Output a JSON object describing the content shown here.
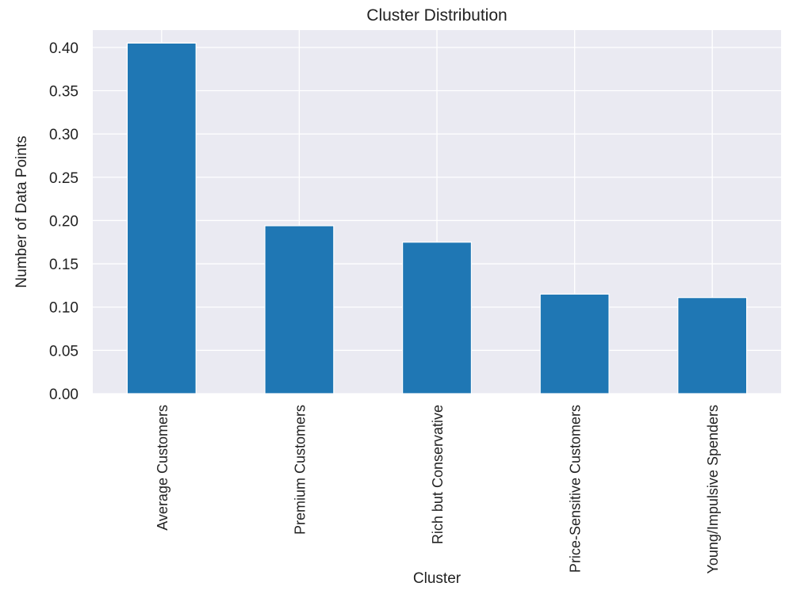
{
  "chart_data": {
    "type": "bar",
    "title": "Cluster Distribution",
    "xlabel": "Cluster",
    "ylabel": "Number of Data Points",
    "categories": [
      "Average Customers",
      "Premium Customers",
      "Rich but Conservative",
      "Price-Sensitive Customers",
      "Young/Impulsive Spenders"
    ],
    "values": [
      0.405,
      0.194,
      0.175,
      0.115,
      0.111
    ],
    "ylim": [
      0,
      0.42
    ],
    "yticks": [
      "0.00",
      "0.05",
      "0.10",
      "0.15",
      "0.20",
      "0.25",
      "0.30",
      "0.35",
      "0.40"
    ],
    "grid": true,
    "colors": {
      "bar": "#1f77b4",
      "background": "#eaeaf2",
      "grid": "#ffffff"
    }
  }
}
